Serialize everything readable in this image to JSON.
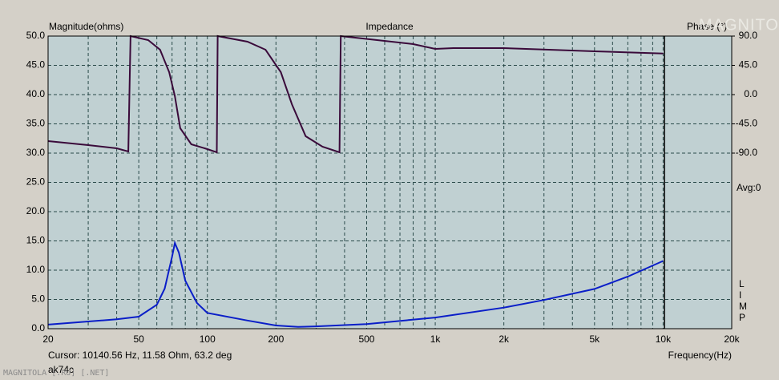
{
  "chart_data": {
    "type": "line",
    "title": "Impedance",
    "ylabel": "Magnitude(ohms)",
    "y2label": "Phase (°)",
    "xlabel": "Frequency(Hz)",
    "cursor": {
      "text": "Cursor: 10140.56 Hz, 11.58 Ohm, 63.2 deg",
      "x": 10140.56
    },
    "avg": "Avg:0",
    "program": "LIMP",
    "user": "ak74c",
    "watermark": "MAGNITOLA [.RU] [.NET]",
    "logo": "MAGNITOLA",
    "log_x": true,
    "grid": true,
    "xlim": [
      20,
      20000
    ],
    "xticks": [
      20,
      50,
      100,
      200,
      500,
      {
        "value": 1000,
        "label": "1k"
      },
      {
        "value": 2000,
        "label": "2k"
      },
      {
        "value": 5000,
        "label": "5k"
      },
      {
        "value": 10000,
        "label": "10k"
      },
      {
        "value": 20000,
        "label": "20k"
      }
    ],
    "xminor": [
      30,
      40,
      60,
      70,
      80,
      90,
      300,
      400,
      600,
      700,
      800,
      900,
      3000,
      4000,
      6000,
      7000,
      8000,
      9000
    ],
    "ylim": [
      0,
      50
    ],
    "yticks": [
      {
        "value": 0,
        "label": "0.0"
      },
      {
        "value": 5,
        "label": "5.0"
      },
      {
        "value": 10,
        "label": "10.0"
      },
      {
        "value": 15,
        "label": "15.0"
      },
      {
        "value": 20,
        "label": "20.0"
      },
      {
        "value": 25,
        "label": "25.0"
      },
      {
        "value": 30,
        "label": "30.0"
      },
      {
        "value": 35,
        "label": "35.0"
      },
      {
        "value": 40,
        "label": "40.0"
      },
      {
        "value": 45,
        "label": "45.0"
      },
      {
        "value": 50,
        "label": "50.0"
      }
    ],
    "y2lim": [
      -360,
      90
    ],
    "y2ticks": [
      {
        "value": 90,
        "label": "90.0"
      },
      {
        "value": 45,
        "label": "45.0"
      },
      {
        "value": 0,
        "label": "0.0"
      },
      {
        "value": -45,
        "label": "-45.0"
      },
      {
        "value": -90,
        "label": "-90.0"
      }
    ],
    "series": [
      {
        "name": "Magnitude",
        "color": "#0a1ec8",
        "x": [
          20,
          40,
          50,
          60,
          65,
          70,
          72,
          75,
          80,
          90,
          100,
          150,
          200,
          250,
          300,
          500,
          1000,
          2000,
          3000,
          5000,
          7000,
          10000
        ],
        "values": [
          0.7,
          1.6,
          2.05,
          4.1,
          6.85,
          12.3,
          14.65,
          13,
          8.2,
          4.4,
          2.7,
          1.4,
          0.55,
          0.3,
          0.4,
          0.8,
          1.9,
          3.6,
          4.9,
          6.8,
          8.9,
          11.58
        ]
      },
      {
        "name": "Phase",
        "color": "#3a0a3a",
        "axis": "y2",
        "x": [
          20,
          30,
          40,
          45,
          46,
          55,
          62,
          68,
          72,
          76,
          85,
          100,
          110,
          111,
          150,
          180,
          210,
          235,
          270,
          320,
          380,
          385,
          800,
          1000,
          1200,
          2000,
          5000,
          10000
        ],
        "values": [
          -71.5,
          -77.7,
          -82.6,
          -87.5,
          90,
          83.8,
          69,
          34.5,
          -2.5,
          -51.8,
          -76.4,
          -83.8,
          -88.8,
          90,
          81.4,
          69,
          34.5,
          -14.8,
          -64,
          -80.1,
          -88.8,
          90,
          77.7,
          70.3,
          71.5,
          71.5,
          66.6,
          63.2
        ]
      }
    ]
  }
}
